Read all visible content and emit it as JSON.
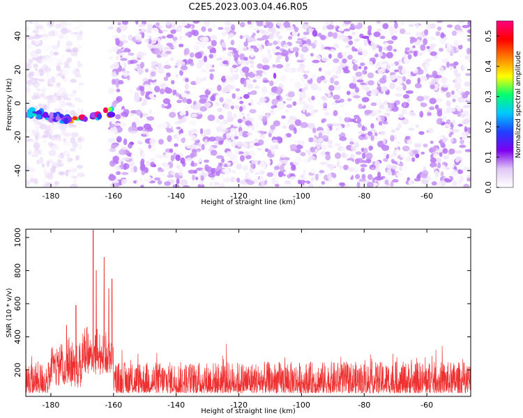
{
  "title": "C2E5.2023.003.04.46.R05",
  "chart_data": [
    {
      "type": "heatmap",
      "xlabel": "Height of straight line (km)",
      "ylabel": "Frequency (Hz)",
      "xlim": [
        -188,
        -46
      ],
      "ylim": [
        -50,
        49
      ],
      "xticks": [
        -180,
        -160,
        -140,
        -120,
        -100,
        -80,
        -60
      ],
      "yticks": [
        -40,
        -20,
        0,
        20,
        40
      ],
      "blank_band_km": [
        -170,
        -161
      ],
      "signal_track": {
        "x_range_km": [
          -188,
          -160
        ],
        "frequency_hz": [
          -5,
          -10
        ],
        "peak_amplitude": 0.5
      },
      "colorbar": {
        "label": "Normalized spectral amplitude",
        "range": [
          0,
          0.55
        ],
        "ticks": [
          0.0,
          0.1,
          0.2,
          0.3,
          0.4,
          0.5
        ],
        "colormap": [
          "#ffffff",
          "#e0c8f5",
          "#7c00f0",
          "#2040ff",
          "#00c8ff",
          "#00ff70",
          "#ffff00",
          "#ff8000",
          "#ff0000",
          "#ff0080"
        ]
      },
      "grid": false
    },
    {
      "type": "line",
      "xlabel": "Height of straight line (km)",
      "ylabel": "SNR (10 * v/v)",
      "xlim": [
        -188,
        -46
      ],
      "ylim": [
        40,
        1050
      ],
      "xticks": [
        -180,
        -160,
        -140,
        -120,
        -100,
        -80,
        -60
      ],
      "yticks": [
        200,
        400,
        600,
        800,
        1000
      ],
      "color": "#ee3030",
      "noise_band": [
        60,
        250
      ],
      "peaks": [
        {
          "x": -175,
          "y": 470
        },
        {
          "x": -172,
          "y": 590
        },
        {
          "x": -166.5,
          "y": 1045
        },
        {
          "x": -165.5,
          "y": 800
        },
        {
          "x": -163,
          "y": 880
        },
        {
          "x": -161.5,
          "y": 690
        },
        {
          "x": -160.5,
          "y": 750
        }
      ],
      "grid": false
    }
  ]
}
